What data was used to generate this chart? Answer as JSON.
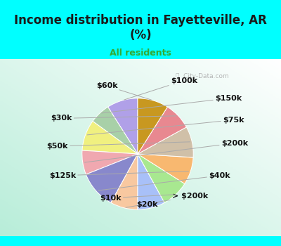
{
  "title": "Income distribution in Fayetteville, AR\n(%)",
  "subtitle": "All residents",
  "title_color": "#1a1a1a",
  "subtitle_color": "#33aa33",
  "background_cyan": "#00ffff",
  "watermark": "  City-Data.com",
  "slices": [
    {
      "label": "$100k",
      "value": 9,
      "color": "#b0a0e8"
    },
    {
      "label": "$150k",
      "value": 6,
      "color": "#a8d0a8"
    },
    {
      "label": "$75k",
      "value": 9,
      "color": "#f0f080"
    },
    {
      "label": "$200k",
      "value": 7,
      "color": "#f0a8b0"
    },
    {
      "label": "$40k",
      "value": 11,
      "color": "#8888cc"
    },
    {
      "label": "> $200k",
      "value": 8,
      "color": "#f8c8a0"
    },
    {
      "label": "$20k",
      "value": 8,
      "color": "#a8c0f8"
    },
    {
      "label": "$10k",
      "value": 8,
      "color": "#a8e890"
    },
    {
      "label": "$125k",
      "value": 8,
      "color": "#f8b870"
    },
    {
      "label": "$50k",
      "value": 9,
      "color": "#d0c0a8"
    },
    {
      "label": "$30k",
      "value": 8,
      "color": "#e88890"
    },
    {
      "label": "$60k",
      "value": 9,
      "color": "#c89820"
    }
  ],
  "start_angle": 90,
  "label_fontsize": 8,
  "label_color": "#111111",
  "title_fontsize": 12,
  "subtitle_fontsize": 9
}
